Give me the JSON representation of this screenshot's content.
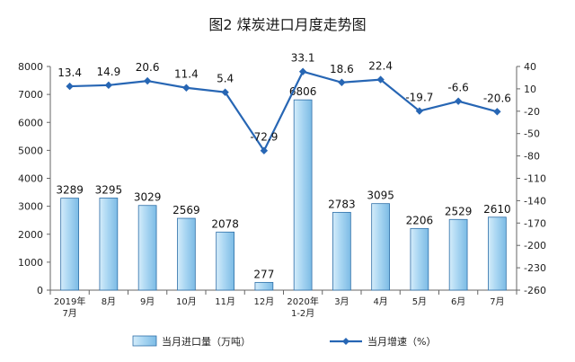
{
  "chart_data": {
    "type": "bar+line",
    "title": "图2  煤炭进口月度走势图",
    "categories": [
      [
        "2019年",
        "7月"
      ],
      [
        "8月"
      ],
      [
        "9月"
      ],
      [
        "10月"
      ],
      [
        "11月"
      ],
      [
        "12月"
      ],
      [
        "2020年",
        "1-2月"
      ],
      [
        "3月"
      ],
      [
        "4月"
      ],
      [
        "5月"
      ],
      [
        "6月"
      ],
      [
        "7月"
      ]
    ],
    "series": [
      {
        "name": "当月进口量（万吨）",
        "type": "bar",
        "axis": "left",
        "values": [
          3289,
          3295,
          3029,
          2569,
          2078,
          277,
          6806,
          2783,
          3095,
          2206,
          2529,
          2610
        ],
        "color": "#8dc6ea"
      },
      {
        "name": "当月增速（%）",
        "type": "line",
        "axis": "right",
        "values": [
          13.4,
          14.9,
          20.6,
          11.4,
          5.4,
          -72.9,
          33.1,
          18.6,
          22.4,
          -19.7,
          -6.6,
          -20.6
        ],
        "color": "#2766b4"
      }
    ],
    "y_left": {
      "min": 0,
      "max": 8000,
      "step": 1000
    },
    "y_right": {
      "min": -260,
      "max": 40,
      "step": 30
    },
    "grid": false,
    "legend": "bottom"
  }
}
